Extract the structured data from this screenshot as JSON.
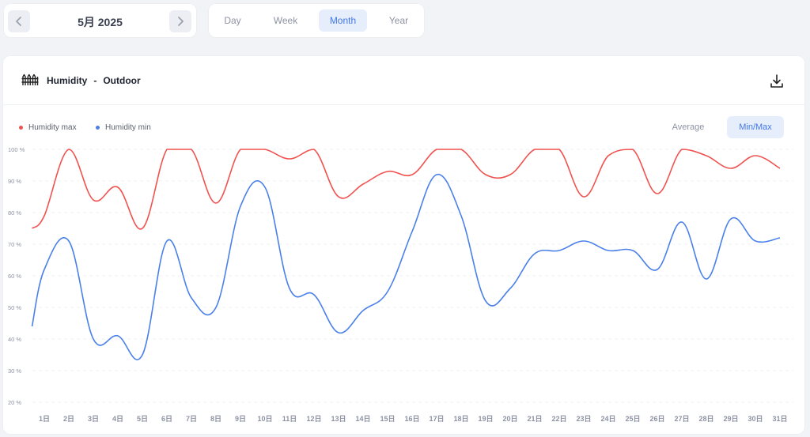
{
  "date_nav": {
    "period": "5月 2025",
    "prev_icon": "chevron-left-icon",
    "next_icon": "chevron-right-icon"
  },
  "tabs": [
    {
      "label": "Day",
      "active": false
    },
    {
      "label": "Week",
      "active": false
    },
    {
      "label": "Month",
      "active": true
    },
    {
      "label": "Year",
      "active": false
    }
  ],
  "panel": {
    "title": "Humidity",
    "separator": "-",
    "subtitle": "Outdoor",
    "icon": "fence-icon",
    "download_icon": "download-icon"
  },
  "modes": {
    "average": "Average",
    "minmax": "Min/Max",
    "active": "Min/Max"
  },
  "colors": {
    "max": "#f0524f",
    "min": "#4a80ea",
    "accent": "#4277e6"
  },
  "chart_data": {
    "type": "line",
    "categories": [
      "1日",
      "2日",
      "3日",
      "4日",
      "5日",
      "6日",
      "7日",
      "8日",
      "9日",
      "10日",
      "11日",
      "12日",
      "13日",
      "14日",
      "15日",
      "16日",
      "17日",
      "18日",
      "19日",
      "20日",
      "21日",
      "22日",
      "23日",
      "24日",
      "25日",
      "26日",
      "27日",
      "28日",
      "29日",
      "30日",
      "31日"
    ],
    "y_ticks": [
      {
        "value": 100,
        "label": "100 %"
      },
      {
        "value": 90,
        "label": "90 %"
      },
      {
        "value": 80,
        "label": "80 %"
      },
      {
        "value": 70,
        "label": "70 %"
      },
      {
        "value": 60,
        "label": "60 %"
      },
      {
        "value": 50,
        "label": "50 %"
      },
      {
        "value": 40,
        "label": "40 %"
      },
      {
        "value": 30,
        "label": "30 %"
      },
      {
        "value": 20,
        "label": "20 %"
      }
    ],
    "ylim": [
      20,
      100
    ],
    "grid": true,
    "legend": "top-left",
    "series": [
      {
        "name": "Humidity max",
        "color": "#f0524f",
        "points": [
          [
            0.5,
            75
          ],
          [
            1,
            79
          ],
          [
            2,
            100
          ],
          [
            3,
            84
          ],
          [
            4,
            88
          ],
          [
            5,
            75
          ],
          [
            6,
            100
          ],
          [
            7,
            100
          ],
          [
            8,
            83
          ],
          [
            9,
            100
          ],
          [
            10,
            100
          ],
          [
            11,
            97
          ],
          [
            12,
            100
          ],
          [
            13,
            85
          ],
          [
            14,
            89
          ],
          [
            15,
            93
          ],
          [
            16,
            92
          ],
          [
            17,
            100
          ],
          [
            18,
            100
          ],
          [
            19,
            92
          ],
          [
            20,
            92
          ],
          [
            21,
            100
          ],
          [
            22,
            100
          ],
          [
            23,
            85
          ],
          [
            24,
            98
          ],
          [
            25,
            100
          ],
          [
            26,
            86
          ],
          [
            27,
            100
          ],
          [
            28,
            98
          ],
          [
            29,
            94
          ],
          [
            30,
            98
          ],
          [
            31,
            94
          ]
        ]
      },
      {
        "name": "Humidity min",
        "color": "#4a80ea",
        "points": [
          [
            0.5,
            44
          ],
          [
            1,
            62
          ],
          [
            2,
            71
          ],
          [
            3,
            40
          ],
          [
            4,
            41
          ],
          [
            5,
            35
          ],
          [
            6,
            71
          ],
          [
            7,
            53
          ],
          [
            8,
            50
          ],
          [
            9,
            82
          ],
          [
            10,
            88
          ],
          [
            11,
            56
          ],
          [
            12,
            54
          ],
          [
            13,
            42
          ],
          [
            14,
            49
          ],
          [
            15,
            55
          ],
          [
            16,
            74
          ],
          [
            17,
            92
          ],
          [
            18,
            79
          ],
          [
            19,
            52
          ],
          [
            20,
            56
          ],
          [
            21,
            67
          ],
          [
            22,
            68
          ],
          [
            23,
            71
          ],
          [
            24,
            68
          ],
          [
            25,
            68
          ],
          [
            26,
            62
          ],
          [
            27,
            77
          ],
          [
            28,
            59
          ],
          [
            29,
            78
          ],
          [
            30,
            71
          ],
          [
            31,
            72
          ]
        ]
      }
    ]
  }
}
